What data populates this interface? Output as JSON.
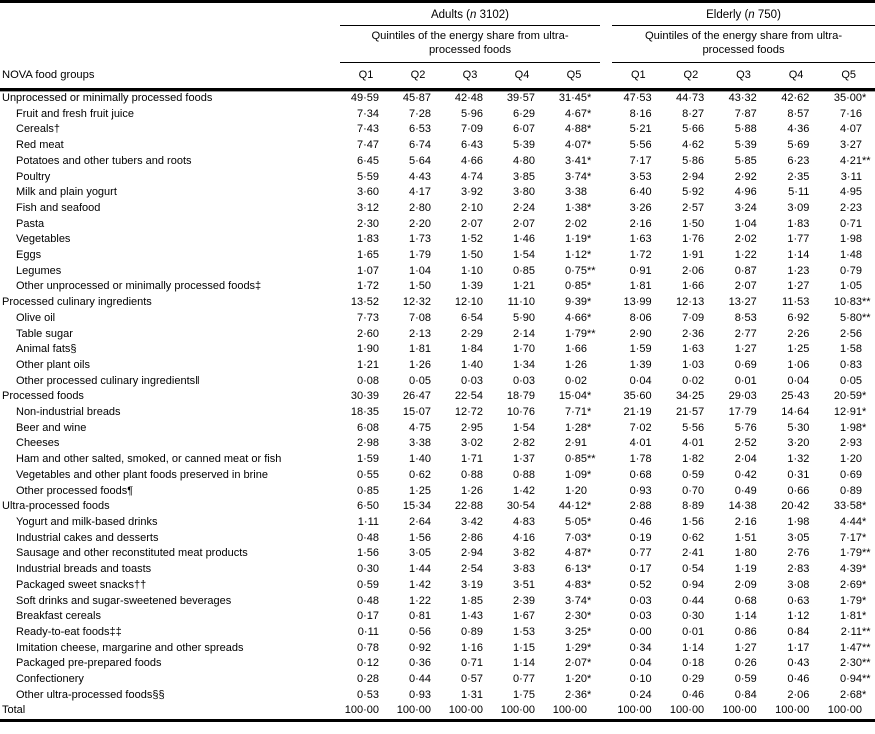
{
  "table": {
    "stub_header": "NOVA food groups",
    "quintile_labels": [
      "Q1",
      "Q2",
      "Q3",
      "Q4",
      "Q5"
    ],
    "groups": [
      {
        "name_pre": "Adults (",
        "n_italic": "n",
        "name_post": " 3102)",
        "subtitle": "Quintiles of the energy share from ultra-processed foods"
      },
      {
        "name_pre": "Elderly (",
        "n_italic": "n",
        "name_post": " 750)",
        "subtitle": "Quintiles of the energy share from ultra-processed foods"
      }
    ],
    "rows": [
      {
        "label": "Unprocessed or minimally processed foods",
        "indent": 0,
        "adults": [
          "49·59",
          "45·87",
          "42·48",
          "39·57",
          "31·45*"
        ],
        "elderly": [
          "47·53",
          "44·73",
          "43·32",
          "42·62",
          "35·00*"
        ]
      },
      {
        "label": "Fruit and fresh fruit juice",
        "indent": 1,
        "adults": [
          "7·34",
          "7·28",
          "5·96",
          "6·29",
          "4·67*"
        ],
        "elderly": [
          "8·16",
          "8·27",
          "7·87",
          "8·57",
          "7·16"
        ]
      },
      {
        "label": "Cereals†",
        "indent": 1,
        "adults": [
          "7·43",
          "6·53",
          "7·09",
          "6·07",
          "4·88*"
        ],
        "elderly": [
          "5·21",
          "5·66",
          "5·88",
          "4·36",
          "4·07"
        ]
      },
      {
        "label": "Red meat",
        "indent": 1,
        "adults": [
          "7·47",
          "6·74",
          "6·43",
          "5·39",
          "4·07*"
        ],
        "elderly": [
          "5·56",
          "4·62",
          "5·39",
          "5·69",
          "3·27"
        ]
      },
      {
        "label": "Potatoes and other tubers and roots",
        "indent": 1,
        "adults": [
          "6·45",
          "5·64",
          "4·66",
          "4·80",
          "3·41*"
        ],
        "elderly": [
          "7·17",
          "5·86",
          "5·85",
          "6·23",
          "4·21**"
        ]
      },
      {
        "label": "Poultry",
        "indent": 1,
        "adults": [
          "5·59",
          "4·43",
          "4·74",
          "3·85",
          "3·74*"
        ],
        "elderly": [
          "3·53",
          "2·94",
          "2·92",
          "2·35",
          "3·11"
        ]
      },
      {
        "label": "Milk and plain yogurt",
        "indent": 1,
        "adults": [
          "3·60",
          "4·17",
          "3·92",
          "3·80",
          "3·38"
        ],
        "elderly": [
          "6·40",
          "5·92",
          "4·96",
          "5·11",
          "4·95"
        ]
      },
      {
        "label": "Fish and seafood",
        "indent": 1,
        "adults": [
          "3·12",
          "2·80",
          "2·10",
          "2·24",
          "1·38*"
        ],
        "elderly": [
          "3·26",
          "2·57",
          "3·24",
          "3·09",
          "2·23"
        ]
      },
      {
        "label": "Pasta",
        "indent": 1,
        "adults": [
          "2·30",
          "2·20",
          "2·07",
          "2·07",
          "2·02"
        ],
        "elderly": [
          "2·16",
          "1·50",
          "1·04",
          "1·83",
          "0·71"
        ]
      },
      {
        "label": "Vegetables",
        "indent": 1,
        "adults": [
          "1·83",
          "1·73",
          "1·52",
          "1·46",
          "1·19*"
        ],
        "elderly": [
          "1·63",
          "1·76",
          "2·02",
          "1·77",
          "1·98"
        ]
      },
      {
        "label": "Eggs",
        "indent": 1,
        "adults": [
          "1·65",
          "1·79",
          "1·50",
          "1·54",
          "1·12*"
        ],
        "elderly": [
          "1·72",
          "1·91",
          "1·22",
          "1·14",
          "1·48"
        ]
      },
      {
        "label": "Legumes",
        "indent": 1,
        "adults": [
          "1·07",
          "1·04",
          "1·10",
          "0·85",
          "0·75**"
        ],
        "elderly": [
          "0·91",
          "2·06",
          "0·87",
          "1·23",
          "0·79"
        ]
      },
      {
        "label": "Other unprocessed or minimally processed foods‡",
        "indent": 1,
        "adults": [
          "1·72",
          "1·50",
          "1·39",
          "1·21",
          "0·85*"
        ],
        "elderly": [
          "1·81",
          "1·66",
          "2·07",
          "1·27",
          "1·05"
        ]
      },
      {
        "label": "Processed culinary ingredients",
        "indent": 0,
        "adults": [
          "13·52",
          "12·32",
          "12·10",
          "11·10",
          "9·39*"
        ],
        "elderly": [
          "13·99",
          "12·13",
          "13·27",
          "11·53",
          "10·83**"
        ]
      },
      {
        "label": "Olive oil",
        "indent": 1,
        "adults": [
          "7·73",
          "7·08",
          "6·54",
          "5·90",
          "4·66*"
        ],
        "elderly": [
          "8·06",
          "7·09",
          "8·53",
          "6·92",
          "5·80**"
        ]
      },
      {
        "label": "Table sugar",
        "indent": 1,
        "adults": [
          "2·60",
          "2·13",
          "2·29",
          "2·14",
          "1·79**"
        ],
        "elderly": [
          "2·90",
          "2·36",
          "2·77",
          "2·26",
          "2·56"
        ]
      },
      {
        "label": "Animal fats§",
        "indent": 1,
        "adults": [
          "1·90",
          "1·81",
          "1·84",
          "1·70",
          "1·66"
        ],
        "elderly": [
          "1·59",
          "1·63",
          "1·27",
          "1·25",
          "1·58"
        ]
      },
      {
        "label": "Other plant oils",
        "indent": 1,
        "adults": [
          "1·21",
          "1·26",
          "1·40",
          "1·34",
          "1·26"
        ],
        "elderly": [
          "1·39",
          "1·03",
          "0·69",
          "1·06",
          "0·83"
        ]
      },
      {
        "label": "Other processed culinary ingredients‖",
        "indent": 1,
        "adults": [
          "0·08",
          "0·05",
          "0·03",
          "0·03",
          "0·02"
        ],
        "elderly": [
          "0·04",
          "0·02",
          "0·01",
          "0·04",
          "0·05"
        ]
      },
      {
        "label": "Processed foods",
        "indent": 0,
        "adults": [
          "30·39",
          "26·47",
          "22·54",
          "18·79",
          "15·04*"
        ],
        "elderly": [
          "35·60",
          "34·25",
          "29·03",
          "25·43",
          "20·59*"
        ]
      },
      {
        "label": "Non-industrial breads",
        "indent": 1,
        "adults": [
          "18·35",
          "15·07",
          "12·72",
          "10·76",
          "7·71*"
        ],
        "elderly": [
          "21·19",
          "21·57",
          "17·79",
          "14·64",
          "12·91*"
        ]
      },
      {
        "label": "Beer and wine",
        "indent": 1,
        "adults": [
          "6·08",
          "4·75",
          "2·95",
          "1·54",
          "1·28*"
        ],
        "elderly": [
          "7·02",
          "5·56",
          "5·76",
          "5·30",
          "1·98*"
        ]
      },
      {
        "label": "Cheeses",
        "indent": 1,
        "adults": [
          "2·98",
          "3·38",
          "3·02",
          "2·82",
          "2·91"
        ],
        "elderly": [
          "4·01",
          "4·01",
          "2·52",
          "3·20",
          "2·93"
        ]
      },
      {
        "label": "Ham and other salted, smoked, or canned meat or fish",
        "indent": 1,
        "adults": [
          "1·59",
          "1·40",
          "1·71",
          "1·37",
          "0·85**"
        ],
        "elderly": [
          "1·78",
          "1·82",
          "2·04",
          "1·32",
          "1·20"
        ]
      },
      {
        "label": "Vegetables and other plant foods preserved in brine",
        "indent": 1,
        "adults": [
          "0·55",
          "0·62",
          "0·88",
          "0·88",
          "1·09*"
        ],
        "elderly": [
          "0·68",
          "0·59",
          "0·42",
          "0·31",
          "0·69"
        ]
      },
      {
        "label": "Other processed foods¶",
        "indent": 1,
        "adults": [
          "0·85",
          "1·25",
          "1·26",
          "1·42",
          "1·20"
        ],
        "elderly": [
          "0·93",
          "0·70",
          "0·49",
          "0·66",
          "0·89"
        ]
      },
      {
        "label": "Ultra-processed foods",
        "indent": 0,
        "adults": [
          "6·50",
          "15·34",
          "22·88",
          "30·54",
          "44·12*"
        ],
        "elderly": [
          "2·88",
          "8·89",
          "14·38",
          "20·42",
          "33·58*"
        ]
      },
      {
        "label": "Yogurt and milk-based drinks",
        "indent": 1,
        "adults": [
          "1·11",
          "2·64",
          "3·42",
          "4·83",
          "5·05*"
        ],
        "elderly": [
          "0·46",
          "1·56",
          "2·16",
          "1·98",
          "4·44*"
        ]
      },
      {
        "label": "Industrial cakes and desserts",
        "indent": 1,
        "adults": [
          "0·48",
          "1·56",
          "2·86",
          "4·16",
          "7·03*"
        ],
        "elderly": [
          "0·19",
          "0·62",
          "1·51",
          "3·05",
          "7·17*"
        ]
      },
      {
        "label": "Sausage and other reconstituted meat products",
        "indent": 1,
        "adults": [
          "1·56",
          "3·05",
          "2·94",
          "3·82",
          "4·87*"
        ],
        "elderly": [
          "0·77",
          "2·41",
          "1·80",
          "2·76",
          "1·79**"
        ]
      },
      {
        "label": "Industrial breads and toasts",
        "indent": 1,
        "adults": [
          "0·30",
          "1·44",
          "2·54",
          "3·83",
          "6·13*"
        ],
        "elderly": [
          "0·17",
          "0·54",
          "1·19",
          "2·83",
          "4·39*"
        ]
      },
      {
        "label": "Packaged sweet snacks††",
        "indent": 1,
        "adults": [
          "0·59",
          "1·42",
          "3·19",
          "3·51",
          "4·83*"
        ],
        "elderly": [
          "0·52",
          "0·94",
          "2·09",
          "3·08",
          "2·69*"
        ]
      },
      {
        "label": "Soft drinks and sugar-sweetened beverages",
        "indent": 1,
        "adults": [
          "0·48",
          "1·22",
          "1·85",
          "2·39",
          "3·74*"
        ],
        "elderly": [
          "0·03",
          "0·44",
          "0·68",
          "0·63",
          "1·79*"
        ]
      },
      {
        "label": "Breakfast cereals",
        "indent": 1,
        "adults": [
          "0·17",
          "0·81",
          "1·43",
          "1·67",
          "2·30*"
        ],
        "elderly": [
          "0·03",
          "0·30",
          "1·14",
          "1·12",
          "1·81*"
        ]
      },
      {
        "label": "Ready-to-eat foods‡‡",
        "indent": 1,
        "adults": [
          "0·11",
          "0·56",
          "0·89",
          "1·53",
          "3·25*"
        ],
        "elderly": [
          "0·00",
          "0·01",
          "0·86",
          "0·84",
          "2·11**"
        ]
      },
      {
        "label": "Imitation cheese, margarine and other spreads",
        "indent": 1,
        "adults": [
          "0·78",
          "0·92",
          "1·16",
          "1·15",
          "1·29*"
        ],
        "elderly": [
          "0·34",
          "1·14",
          "1·27",
          "1·17",
          "1·47**"
        ]
      },
      {
        "label": "Packaged pre-prepared foods",
        "indent": 1,
        "adults": [
          "0·12",
          "0·36",
          "0·71",
          "1·14",
          "2·07*"
        ],
        "elderly": [
          "0·04",
          "0·18",
          "0·26",
          "0·43",
          "2·30**"
        ]
      },
      {
        "label": "Confectionery",
        "indent": 1,
        "adults": [
          "0·28",
          "0·44",
          "0·57",
          "0·77",
          "1·20*"
        ],
        "elderly": [
          "0·10",
          "0·29",
          "0·59",
          "0·46",
          "0·94**"
        ]
      },
      {
        "label": "Other ultra-processed foods§§",
        "indent": 1,
        "adults": [
          "0·53",
          "0·93",
          "1·31",
          "1·75",
          "2·36*"
        ],
        "elderly": [
          "0·24",
          "0·46",
          "0·84",
          "2·06",
          "2·68*"
        ]
      },
      {
        "label": "Total",
        "indent": 0,
        "adults": [
          "100·00",
          "100·00",
          "100·00",
          "100·00",
          "100·00"
        ],
        "elderly": [
          "100·00",
          "100·00",
          "100·00",
          "100·00",
          "100·00"
        ]
      }
    ]
  },
  "colors": {
    "text": "#000000",
    "rule": "#000000",
    "background": "#ffffff"
  }
}
